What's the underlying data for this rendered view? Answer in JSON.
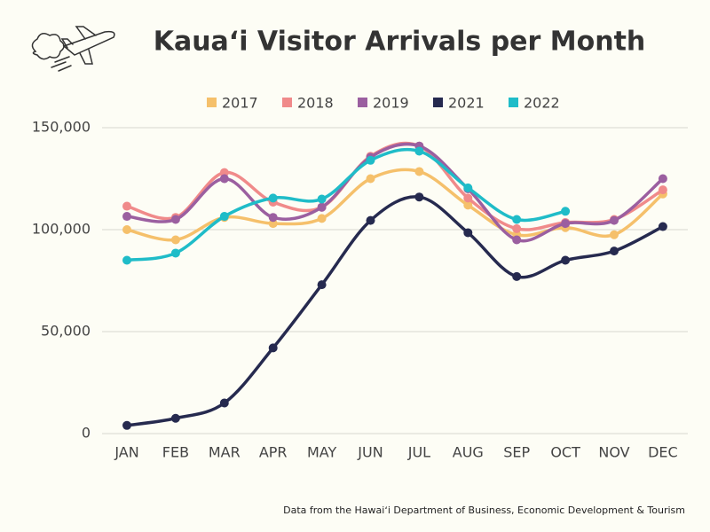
{
  "chart_data": {
    "type": "line",
    "title": "Kauaʻi Visitor Arrivals per Month",
    "note": "Data from the Hawaiʻi Department of Business, Economic Development & Tourism",
    "categories": [
      "JAN",
      "FEB",
      "MAR",
      "APR",
      "MAY",
      "JUN",
      "JUL",
      "AUG",
      "SEP",
      "OCT",
      "NOV",
      "DEC"
    ],
    "series": [
      {
        "name": "2017",
        "color": "#f5c06b",
        "values": [
          100000,
          95000,
          106000,
          103000,
          105500,
          125000,
          128500,
          112000,
          97500,
          101000,
          97500,
          117500
        ]
      },
      {
        "name": "2018",
        "color": "#f08a8a",
        "values": [
          111500,
          106000,
          128000,
          113500,
          111000,
          136000,
          141000,
          115500,
          100500,
          103500,
          105000,
          119500
        ]
      },
      {
        "name": "2019",
        "color": "#9b5fa0",
        "values": [
          106500,
          105000,
          125000,
          106000,
          111000,
          135500,
          141000,
          120000,
          95000,
          103000,
          104500,
          125000
        ]
      },
      {
        "name": "2021",
        "color": "#262a4f",
        "values": [
          4000,
          7500,
          15000,
          42000,
          73000,
          104500,
          116000,
          98500,
          77000,
          85000,
          89500,
          101500
        ]
      },
      {
        "name": "2022",
        "color": "#1fbcc8",
        "values": [
          85000,
          88500,
          106500,
          115500,
          115000,
          134000,
          138500,
          120500,
          105000,
          109000,
          null,
          null
        ]
      }
    ],
    "ylim": [
      0,
      150000
    ],
    "yticks": [
      0,
      {
        "value": 50000,
        "label": "50,000"
      },
      {
        "value": 100000,
        "label": "100,000"
      },
      {
        "value": 150000,
        "label": "150,000"
      }
    ],
    "grid": true,
    "legend": "top"
  }
}
